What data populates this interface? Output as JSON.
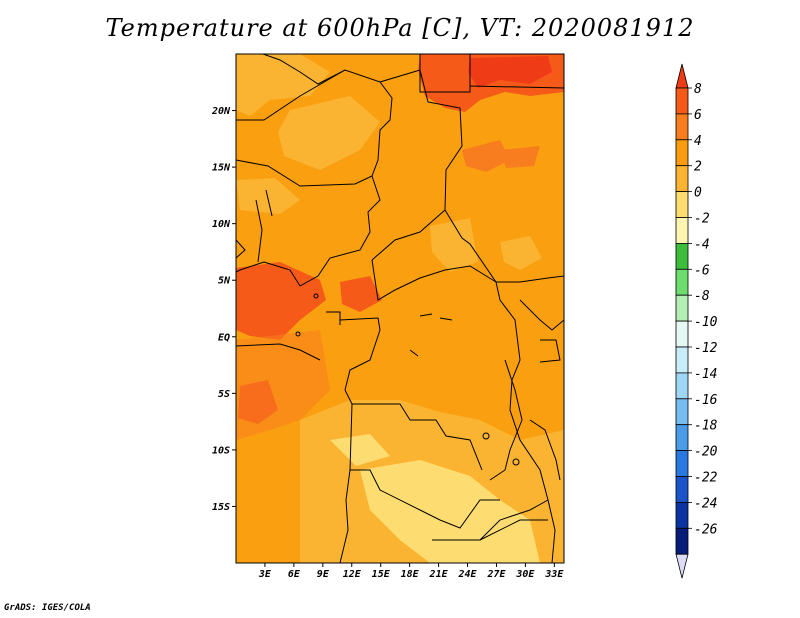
{
  "title": "Temperature at 600hPa [C], VT: 2020081912",
  "footer": "GrADS: IGES/COLA",
  "map": {
    "lon_range": [
      0,
      34
    ],
    "lat_range": [
      -20,
      25
    ],
    "x_ticks": [
      "3E",
      "6E",
      "9E",
      "12E",
      "15E",
      "18E",
      "21E",
      "24E",
      "27E",
      "30E",
      "33E"
    ],
    "x_tick_values": [
      3,
      6,
      9,
      12,
      15,
      18,
      21,
      24,
      27,
      30,
      33
    ],
    "y_ticks": [
      "20N",
      "15N",
      "10N",
      "5N",
      "EQ",
      "5S",
      "10S",
      "15S"
    ],
    "y_tick_values": [
      20,
      15,
      10,
      5,
      0,
      -5,
      -10,
      -15
    ]
  },
  "colorbar": {
    "labels": [
      "8",
      "6",
      "4",
      "2",
      "0",
      "-2",
      "-4",
      "-6",
      "-8",
      "-10",
      "-12",
      "-14",
      "-16",
      "-18",
      "-20",
      "-22",
      "-24",
      "-26"
    ],
    "colors": [
      "#f03c16",
      "#f55a19",
      "#f87d1f",
      "#fa9c10",
      "#fbb431",
      "#fddc71",
      "#fef6b0",
      "#3cbe3c",
      "#6ddd6d",
      "#b4f0b4",
      "#e6f8f4",
      "#c8ecf8",
      "#a0d6f5",
      "#78bdf0",
      "#4a9ce8",
      "#2878df",
      "#1a54c8",
      "#0c34a0",
      "#071d78",
      "#dcdcf5"
    ]
  },
  "colors": {
    "base_field": "#fa9f0f",
    "warm_field": "#f55a19",
    "hot_field": "#f03c16",
    "cool_field": "#fbb431",
    "coolest_field": "#fddc71"
  }
}
